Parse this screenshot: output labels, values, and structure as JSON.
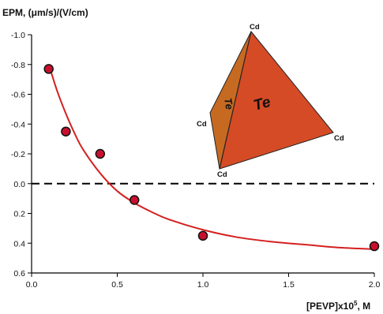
{
  "chart_data": {
    "type": "scatter",
    "ylabel": "EPM, (μm/s)/(V/cm)",
    "xlabel_main": "[PEVP]x10",
    "xlabel_sup": "5",
    "xlabel_tail": ", M",
    "xlim": [
      0.0,
      2.0
    ],
    "ylim": [
      -1.0,
      0.6
    ],
    "y_inverted": true,
    "x_ticks": [
      0.0,
      0.5,
      1.0,
      1.5,
      2.0
    ],
    "x_tick_labels": [
      "0.0",
      "0.5",
      "1.0",
      "1.5",
      "2.0"
    ],
    "y_ticks": [
      -1.0,
      -0.8,
      -0.6,
      -0.4,
      -0.2,
      0.0,
      0.2,
      0.4,
      0.6
    ],
    "y_tick_labels": [
      "-1.0",
      "-0.8",
      "-0.6",
      "-0.4",
      "-0.2",
      "0.0",
      "0.2",
      "0.4",
      "0.6"
    ],
    "grid": false,
    "reference_line": {
      "y": 0.0,
      "style": "dashed"
    },
    "series": [
      {
        "points": [
          {
            "x": 0.1,
            "y": -0.77
          },
          {
            "x": 0.2,
            "y": -0.35
          },
          {
            "x": 0.4,
            "y": -0.2
          },
          {
            "x": 0.6,
            "y": 0.11
          },
          {
            "x": 1.0,
            "y": 0.35
          },
          {
            "x": 2.0,
            "y": 0.42
          }
        ],
        "color": "#c8102e"
      }
    ],
    "fit_curve": {
      "color": "#d42020",
      "x": [
        0.1,
        0.15,
        0.2,
        0.25,
        0.3,
        0.4,
        0.5,
        0.6,
        0.7,
        0.8,
        1.0,
        1.2,
        1.4,
        1.6,
        1.8,
        2.0
      ],
      "y": [
        -0.8,
        -0.62,
        -0.47,
        -0.34,
        -0.23,
        -0.07,
        0.05,
        0.13,
        0.19,
        0.24,
        0.31,
        0.36,
        0.39,
        0.41,
        0.43,
        0.44
      ]
    },
    "inset": {
      "face_labels": [
        "Te",
        "Te"
      ],
      "vertex_labels": [
        "Cd",
        "Cd",
        "Cd",
        "Cd"
      ],
      "colors": {
        "left_face": "#c66a22",
        "right_face": "#d44b26",
        "edge": "#222222"
      }
    }
  }
}
